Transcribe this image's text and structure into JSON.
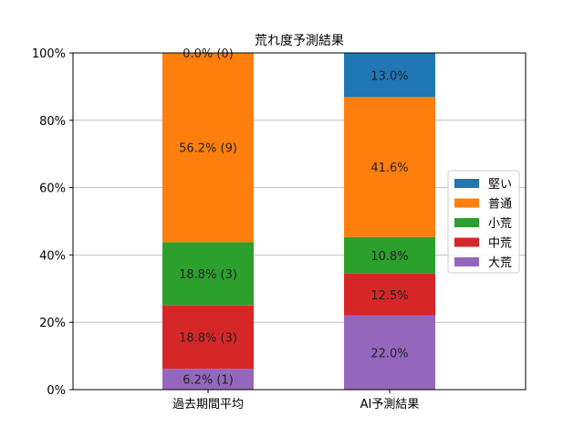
{
  "chart_data": {
    "type": "bar",
    "stacked": true,
    "title": "荒れ度予測結果",
    "xlabel": "",
    "ylabel": "",
    "categories": [
      "過去期間平均",
      "AI予測結果"
    ],
    "ylim": [
      0,
      100
    ],
    "yticks": [
      0,
      20,
      40,
      60,
      80,
      100
    ],
    "ytick_labels": [
      "0%",
      "20%",
      "40%",
      "60%",
      "80%",
      "100%"
    ],
    "grid": "horizontal",
    "legend_position": "center-right",
    "series": [
      {
        "name": "大荒",
        "color": "#9467bd",
        "values": [
          6.2,
          22.0
        ],
        "labels": [
          "6.2% (1)",
          "22.0%"
        ]
      },
      {
        "name": "中荒",
        "color": "#d62728",
        "values": [
          18.8,
          12.5
        ],
        "labels": [
          "18.8% (3)",
          "12.5%"
        ]
      },
      {
        "name": "小荒",
        "color": "#2ca02c",
        "values": [
          18.8,
          10.8
        ],
        "labels": [
          "18.8% (3)",
          "10.8%"
        ]
      },
      {
        "name": "普通",
        "color": "#ff7f0e",
        "values": [
          56.2,
          41.6
        ],
        "labels": [
          "56.2% (9)",
          "41.6%"
        ]
      },
      {
        "name": "堅い",
        "color": "#1f77b4",
        "values": [
          0.0,
          13.0
        ],
        "labels": [
          "0.0% (0)",
          "13.0%"
        ]
      }
    ],
    "legend_order": [
      "堅い",
      "普通",
      "小荒",
      "中荒",
      "大荒"
    ]
  }
}
